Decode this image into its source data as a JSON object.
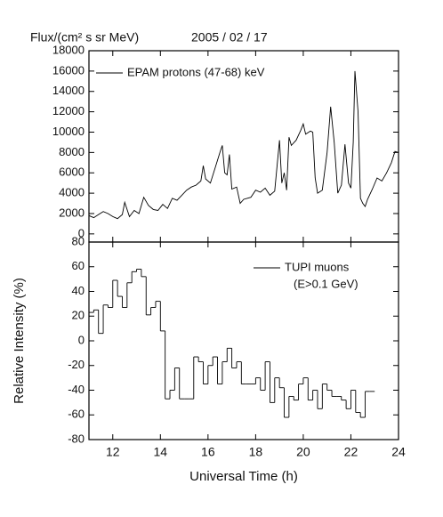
{
  "chart_data": [
    {
      "type": "line",
      "ylabel": "Flux/(cm² s sr MeV)",
      "title": "2005 / 02 / 17",
      "xlim": [
        11,
        24
      ],
      "xticks": [
        12,
        14,
        16,
        18,
        20,
        22,
        24
      ],
      "ylim": [
        -800,
        18000
      ],
      "yticks": [
        0,
        2000,
        4000,
        6000,
        8000,
        10000,
        12000,
        14000,
        16000,
        18000
      ],
      "legend": "upper left",
      "series": [
        {
          "name": "EPAM protons (47-68) keV",
          "color": "#000000",
          "x": [
            11.0,
            11.2,
            11.4,
            11.6,
            11.8,
            12.0,
            12.2,
            12.4,
            12.5,
            12.7,
            12.9,
            13.1,
            13.3,
            13.5,
            13.7,
            13.9,
            14.1,
            14.3,
            14.5,
            14.7,
            14.9,
            15.1,
            15.3,
            15.5,
            15.7,
            15.8,
            15.9,
            16.1,
            16.3,
            16.5,
            16.6,
            16.7,
            16.8,
            16.9,
            17.0,
            17.2,
            17.35,
            17.5,
            17.8,
            18.0,
            18.2,
            18.4,
            18.6,
            18.8,
            19.0,
            19.1,
            19.2,
            19.3,
            19.4,
            19.5,
            19.7,
            19.9,
            20.0,
            20.1,
            20.3,
            20.4,
            20.5,
            20.6,
            20.8,
            21.0,
            21.15,
            21.3,
            21.45,
            21.6,
            21.75,
            21.9,
            22.0,
            22.1,
            22.17,
            22.3,
            22.4,
            22.5,
            22.6,
            22.7,
            22.9,
            23.1,
            23.3,
            23.5,
            23.7,
            23.85,
            24.0
          ],
          "values": [
            1800,
            1600,
            1900,
            2200,
            2000,
            1700,
            1500,
            1900,
            3100,
            1700,
            2300,
            2000,
            3600,
            2800,
            2400,
            2300,
            2900,
            2500,
            3500,
            3300,
            3800,
            4300,
            4600,
            4800,
            5200,
            6700,
            5400,
            5000,
            6500,
            8000,
            8700,
            6000,
            5800,
            7800,
            4400,
            4600,
            3000,
            3400,
            3600,
            4300,
            4100,
            4500,
            3800,
            4200,
            9200,
            5000,
            6000,
            4300,
            9500,
            8700,
            9200,
            10200,
            10800,
            9800,
            10100,
            10000,
            5500,
            4000,
            4300,
            8000,
            12500,
            9000,
            4000,
            4800,
            8800,
            5000,
            4500,
            9000,
            16000,
            12000,
            3500,
            3000,
            2700,
            3400,
            4400,
            5500,
            5200,
            6000,
            7000,
            8100,
            8000
          ]
        }
      ]
    },
    {
      "type": "step",
      "ylabel": "Relative Intensity (%)",
      "xlabel": "Universal Time (h)",
      "xlim": [
        11,
        24
      ],
      "xticks": [
        12,
        14,
        16,
        18,
        20,
        22,
        24
      ],
      "ylim": [
        -80,
        80
      ],
      "yticks": [
        -80,
        -60,
        -40,
        -20,
        0,
        20,
        40,
        60,
        80
      ],
      "legend": "upper right",
      "series": [
        {
          "name": "TUPI muons",
          "note": "(E>0.1 GeV)",
          "color": "#000000",
          "x": [
            11.0,
            11.2,
            11.4,
            11.6,
            11.8,
            12.0,
            12.2,
            12.4,
            12.6,
            12.8,
            13.0,
            13.2,
            13.4,
            13.6,
            13.8,
            14.0,
            14.2,
            14.4,
            14.6,
            14.8,
            15.0,
            15.2,
            15.4,
            15.6,
            15.8,
            16.0,
            16.2,
            16.4,
            16.6,
            16.8,
            17.0,
            17.2,
            17.4,
            17.6,
            17.8,
            18.0,
            18.2,
            18.4,
            18.6,
            18.8,
            19.0,
            19.2,
            19.4,
            19.6,
            19.8,
            20.0,
            20.2,
            20.4,
            20.6,
            20.8,
            21.0,
            21.2,
            21.4,
            21.6,
            21.8,
            22.0,
            22.2,
            22.4,
            22.6,
            22.8
          ],
          "values": [
            23,
            25,
            6,
            29,
            27,
            49,
            36,
            27,
            47,
            56,
            58,
            52,
            21,
            27,
            32,
            8,
            -47,
            -40,
            -22,
            -47,
            -47,
            -47,
            -13,
            -17,
            -35,
            -20,
            -13,
            -35,
            -17,
            -6,
            -22,
            -17,
            -35,
            -35,
            -35,
            -30,
            -40,
            -17,
            -50,
            -30,
            -38,
            -62,
            -45,
            -48,
            -35,
            -30,
            -48,
            -40,
            -55,
            -35,
            -40,
            -45,
            -45,
            -48,
            -55,
            -40,
            -58,
            -62,
            -41,
            -41
          ]
        }
      ]
    }
  ]
}
